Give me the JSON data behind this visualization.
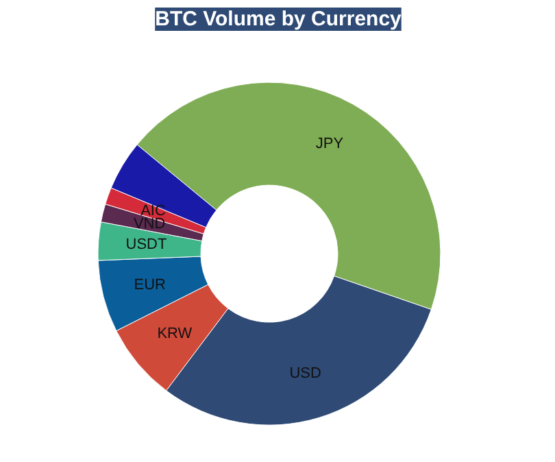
{
  "chart_data": {
    "type": "donut",
    "title": "BTC Volume by Currency",
    "categories": [
      "JPY",
      "USD",
      "KRW",
      "EUR",
      "USDT",
      "VND",
      "AIC",
      null
    ],
    "values": [
      44.3,
      30,
      7.3,
      6.8,
      3.6,
      1.7,
      1.6,
      4.7
    ],
    "colors": [
      "#7fad55",
      "#2e4a75",
      "#d04a3a",
      "#0a5e9a",
      "#3fb58a",
      "#5a2a50",
      "#d42a3a",
      "#1a1aa8"
    ]
  }
}
